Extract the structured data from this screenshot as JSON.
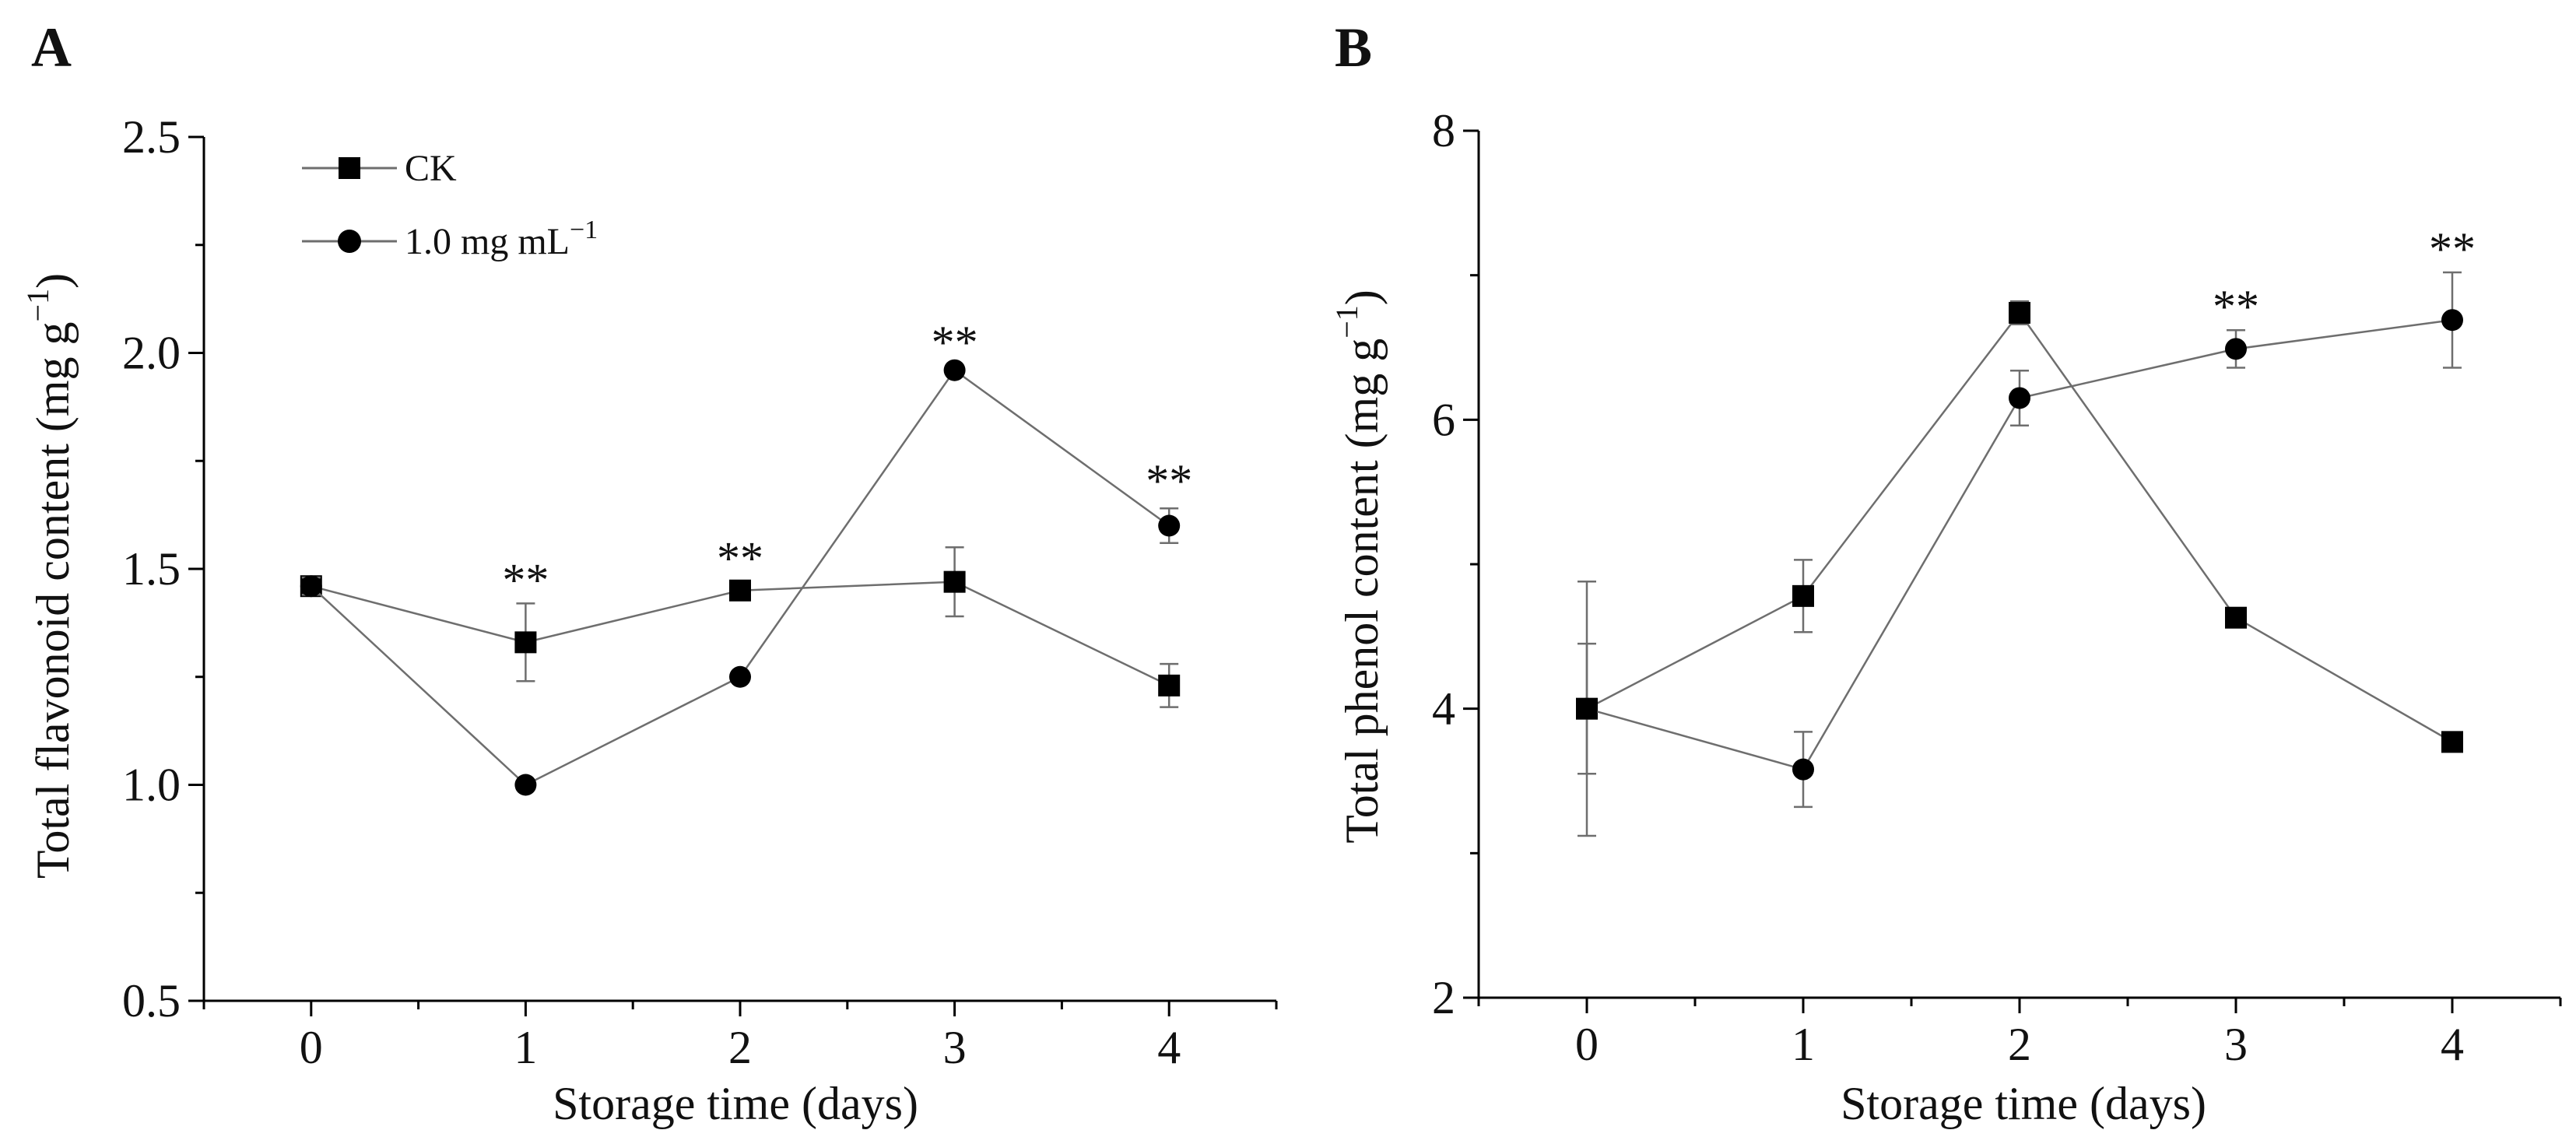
{
  "colors": {
    "line": "#6e6e6e",
    "marker": "#000000",
    "axis": "#000000",
    "errorbar": "#6e6e6e"
  },
  "legend": {
    "entries": [
      {
        "series": "CK",
        "marker": "square",
        "label": "CK"
      },
      {
        "series": "1.0 mg mL−1",
        "marker": "circle",
        "label": "1.0 mg mL",
        "sup": "−1"
      }
    ]
  },
  "chart_data": [
    {
      "panel": "A",
      "type": "line",
      "xlabel": "Storage time (days)",
      "ylabel_main": "Total flavonoid content (mg g",
      "ylabel_sup": "−1",
      "ylabel_end": ")",
      "x": [
        0,
        1,
        2,
        3,
        4
      ],
      "xlim": [
        -0.5,
        4.5
      ],
      "ylim": [
        0.5,
        2.5
      ],
      "xticks": [
        0,
        1,
        2,
        3,
        4
      ],
      "yticks": [
        0.5,
        1.0,
        1.5,
        2.0,
        2.5
      ],
      "ytick_labels": [
        "0.5",
        "1.0",
        "1.5",
        "2.0",
        "2.5"
      ],
      "series": [
        {
          "name": "CK",
          "marker": "square",
          "values": [
            1.46,
            1.33,
            1.45,
            1.47,
            1.23
          ],
          "errors": [
            0.02,
            0.09,
            0.02,
            0.08,
            0.05
          ]
        },
        {
          "name": "1.0 mg mL−1",
          "marker": "circle",
          "values": [
            1.46,
            1.0,
            1.25,
            1.96,
            1.6
          ],
          "errors": [
            0.02,
            0.01,
            0.01,
            0.01,
            0.04
          ]
        }
      ],
      "significance": [
        {
          "x": 1,
          "y": 1.42,
          "text": "**"
        },
        {
          "x": 2,
          "y": 1.47,
          "text": "**"
        },
        {
          "x": 3,
          "y": 1.97,
          "text": "**"
        },
        {
          "x": 4,
          "y": 1.65,
          "text": "**"
        }
      ]
    },
    {
      "panel": "B",
      "type": "line",
      "xlabel": "Storage time (days)",
      "ylabel_main": "Total phenol content (mg g",
      "ylabel_sup": "−1",
      "ylabel_end": ")",
      "x": [
        0,
        1,
        2,
        3,
        4
      ],
      "xlim": [
        -0.5,
        4.5
      ],
      "ylim": [
        2,
        8
      ],
      "xticks": [
        0,
        1,
        2,
        3,
        4
      ],
      "yticks": [
        2,
        4,
        6,
        8
      ],
      "ytick_labels": [
        "2",
        "4",
        "6",
        "8"
      ],
      "series": [
        {
          "name": "CK",
          "marker": "square",
          "values": [
            4.0,
            4.78,
            6.74,
            4.63,
            3.77
          ],
          "errors": [
            0.45,
            0.25,
            0.08,
            0.04,
            0.04
          ]
        },
        {
          "name": "1.0 mg mL−1",
          "marker": "circle",
          "values": [
            4.0,
            3.58,
            6.15,
            6.49,
            6.69
          ],
          "errors": [
            0.88,
            0.26,
            0.19,
            0.13,
            0.33
          ]
        }
      ],
      "significance": [
        {
          "x": 3,
          "y": 6.62,
          "text": "**"
        },
        {
          "x": 4,
          "y": 7.02,
          "text": "**"
        }
      ]
    }
  ]
}
